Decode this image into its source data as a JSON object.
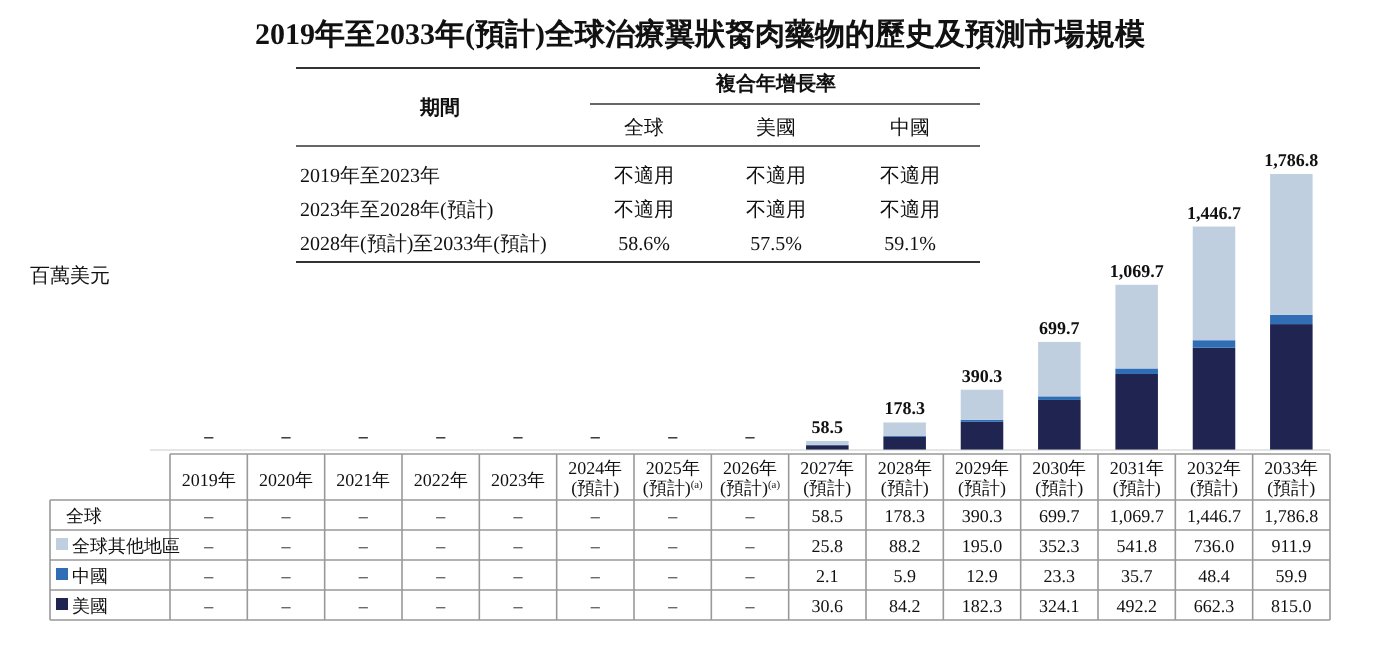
{
  "chart_data": {
    "type": "bar",
    "stacked": true,
    "legend": "bottom",
    "title": "2019年至2033年(預計)全球治療翼狀胬肉藥物的歷史及預測市場規模",
    "ylabel": "百萬美元",
    "categories": [
      "2019年",
      "2020年",
      "2021年",
      "2022年",
      "2023年",
      "2024年\n(預計)",
      "2025年\n(預計)$^{(a)}$",
      "2026年\n(預計)$^{(a)}$",
      "2027年\n(預計)",
      "2028年\n(預計)",
      "2029年\n(預計)",
      "2030年\n(預計)",
      "2031年\n(預計)",
      "2032年\n(預計)",
      "2033年\n(預計)"
    ],
    "series": [
      {
        "name": "美國",
        "color": "#1f2450",
        "values": [
          null,
          null,
          null,
          null,
          null,
          null,
          null,
          null,
          30.6,
          84.2,
          182.3,
          324.1,
          492.2,
          662.3,
          815.0
        ],
        "value_labels": [
          "–",
          "–",
          "–",
          "–",
          "–",
          "–",
          "–",
          "–",
          "30.6",
          "84.2",
          "182.3",
          "324.1",
          "492.2",
          "662.3",
          "815.0"
        ]
      },
      {
        "name": "中國",
        "color": "#2f6db5",
        "values": [
          null,
          null,
          null,
          null,
          null,
          null,
          null,
          null,
          2.1,
          5.9,
          12.9,
          23.3,
          35.7,
          48.4,
          59.9
        ],
        "value_labels": [
          "–",
          "–",
          "–",
          "–",
          "–",
          "–",
          "–",
          "–",
          "2.1",
          "5.9",
          "12.9",
          "23.3",
          "35.7",
          "48.4",
          "59.9"
        ]
      },
      {
        "name": "全球其他地區",
        "color": "#c0cfe0",
        "values": [
          null,
          null,
          null,
          null,
          null,
          null,
          null,
          null,
          25.8,
          88.2,
          195.0,
          352.3,
          541.8,
          736.0,
          911.9
        ],
        "value_labels": [
          "–",
          "–",
          "–",
          "–",
          "–",
          "–",
          "–",
          "–",
          "25.8",
          "88.2",
          "195.0",
          "352.3",
          "541.8",
          "736.0",
          "911.9"
        ]
      }
    ],
    "totals": [
      "–",
      "–",
      "–",
      "–",
      "–",
      "–",
      "–",
      "–",
      "58.5",
      "178.3",
      "390.3",
      "699.7",
      "1,069.7",
      "1,446.7",
      "1,786.8"
    ],
    "annotations": [
      "全球",
      "期間",
      "複合年增長率",
      "全球",
      "美國",
      "中國",
      "2019年至2023年",
      "不適用",
      "不適用",
      "不適用",
      "2023年至2028年(預計)",
      "不適用",
      "不適用",
      "不適用",
      "2028年(預計)至2033年(預計)",
      "58.6%",
      "57.5%",
      "59.1%"
    ]
  }
}
